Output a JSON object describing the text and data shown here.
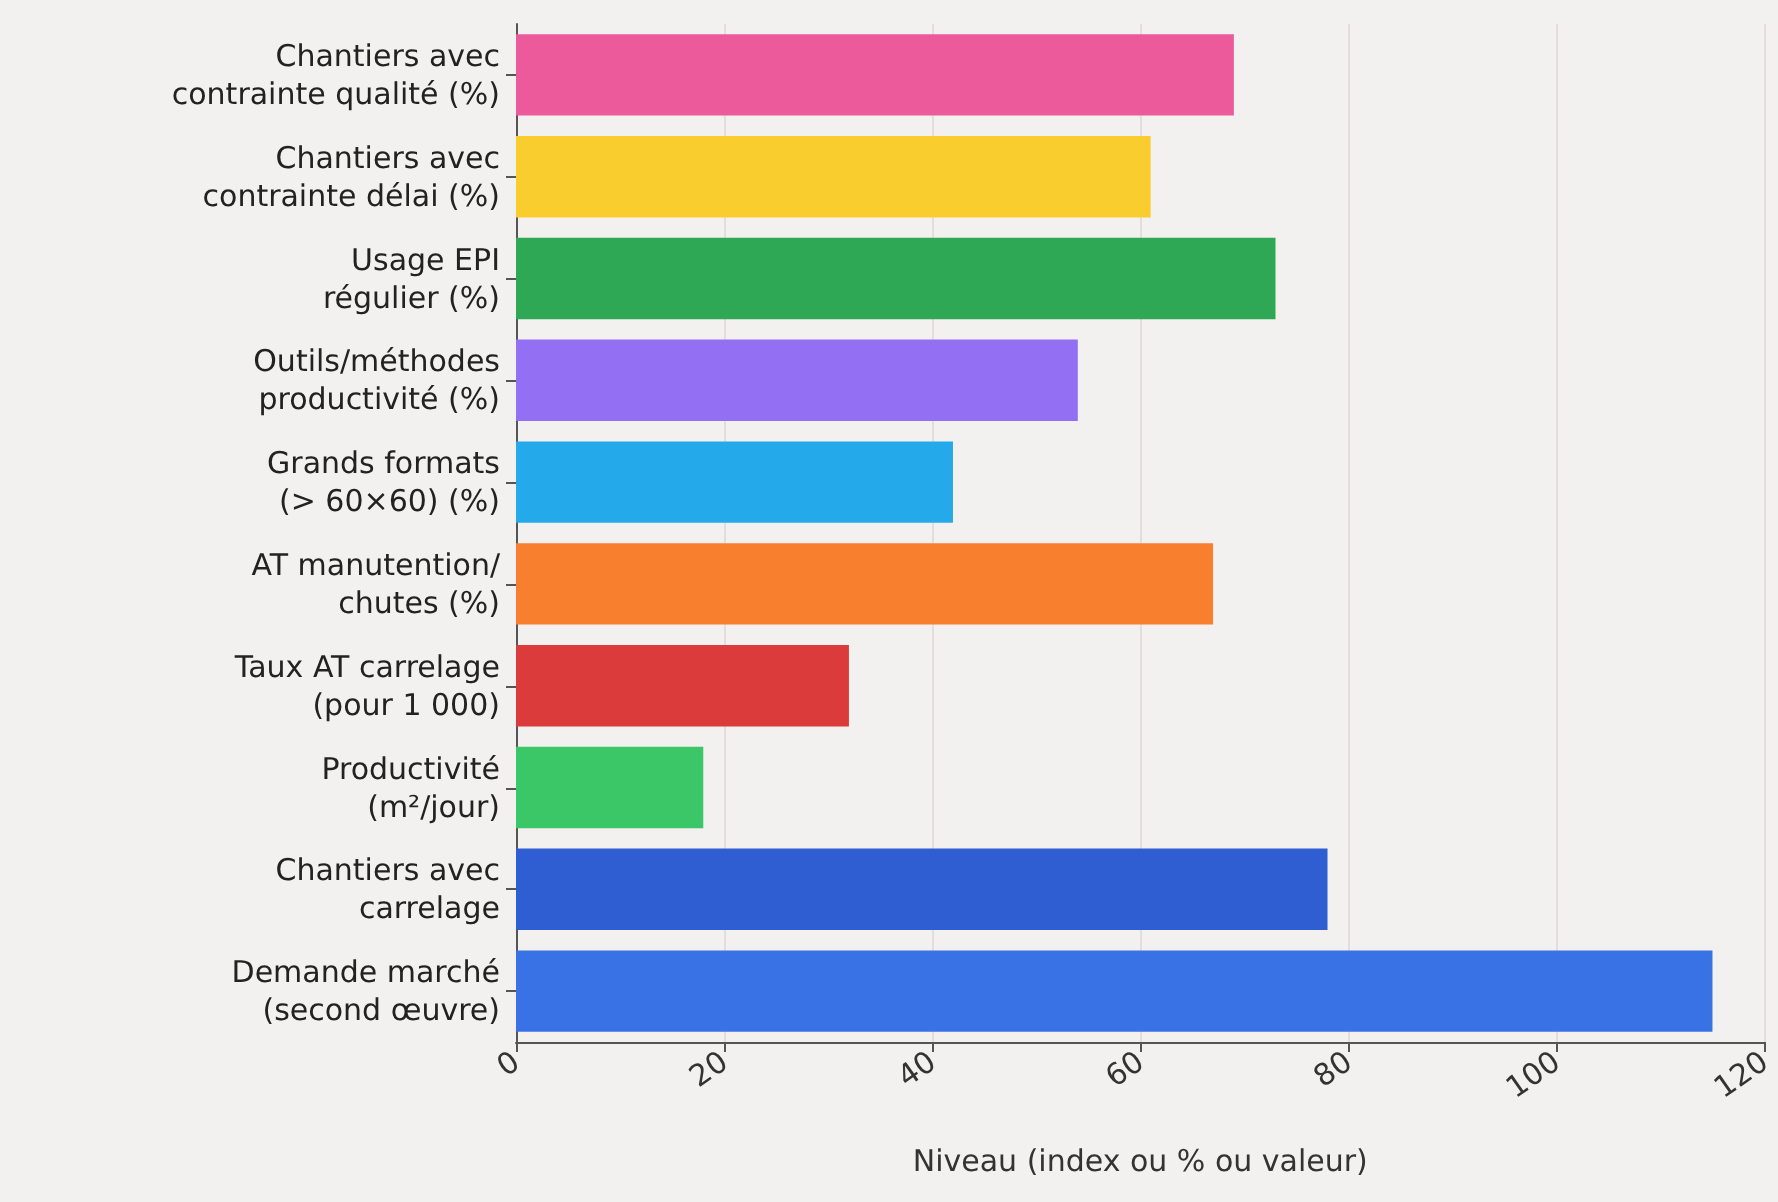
{
  "chart_data": {
    "type": "bar",
    "orientation": "horizontal",
    "categories": [
      "Chantiers avec\ncontrainte qualité (%)",
      "Chantiers avec\ncontrainte délai (%)",
      "Usage EPI\nrégulier (%)",
      "Outils/méthodes\nproductivité (%)",
      "Grands formats\n(> 60×60) (%)",
      "AT manutention/\nchutes (%)",
      "Taux AT carrelage\n(pour 1 000)",
      "Productivité\n(m²/jour)",
      "Chantiers avec\ncarrelage",
      "Demande marché\n(second œuvre)"
    ],
    "values": [
      69,
      61,
      73,
      54,
      42,
      67,
      32,
      18,
      78,
      115
    ],
    "colors": [
      "#ec5a9c",
      "#f9cd2e",
      "#2ea854",
      "#9370f3",
      "#24aaea",
      "#f77f2e",
      "#dc3b3b",
      "#3bc767",
      "#2f5ed3",
      "#3872e4"
    ],
    "xlabel": "Niveau (index ou % ou valeur)",
    "xlim": [
      0,
      120
    ],
    "xticks": [
      0,
      20,
      40,
      60,
      80,
      100,
      120
    ],
    "grid": "x"
  }
}
